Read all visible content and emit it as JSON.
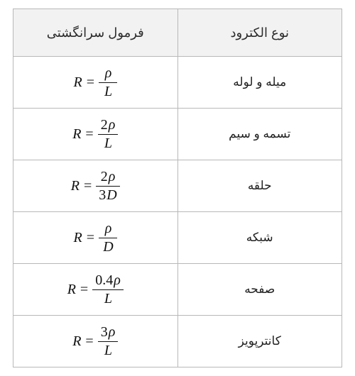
{
  "table": {
    "columns": [
      "فرمول سرانگشتی",
      "نوع الکترود"
    ],
    "header_bg": "#f2f2f2",
    "border_color": "#b8b8b8",
    "header_fontsize": 18,
    "cell_fontsize": 17,
    "formula_fontsize": 20,
    "text_color": "#222222",
    "rows": [
      {
        "type": "میله و لوله",
        "formula": {
          "lhs": "R",
          "numerator_coef": "",
          "numerator_sym": "ρ",
          "denominator_coef": "",
          "denominator_sym": "L"
        }
      },
      {
        "type": "تسمه و سیم",
        "formula": {
          "lhs": "R",
          "numerator_coef": "2",
          "numerator_sym": "ρ",
          "denominator_coef": "",
          "denominator_sym": "L"
        }
      },
      {
        "type": "حلقه",
        "formula": {
          "lhs": "R",
          "numerator_coef": "2",
          "numerator_sym": "ρ",
          "denominator_coef": "3",
          "denominator_sym": "D"
        }
      },
      {
        "type": "شبکه",
        "formula": {
          "lhs": "R",
          "numerator_coef": "",
          "numerator_sym": "ρ",
          "denominator_coef": "",
          "denominator_sym": "D"
        }
      },
      {
        "type": "صفحه",
        "formula": {
          "lhs": "R",
          "numerator_coef": "0.4",
          "numerator_sym": "ρ",
          "denominator_coef": "",
          "denominator_sym": "L"
        }
      },
      {
        "type": "کانترپویز",
        "formula": {
          "lhs": "R",
          "numerator_coef": "3",
          "numerator_sym": "ρ",
          "denominator_coef": "",
          "denominator_sym": "L"
        }
      }
    ]
  }
}
